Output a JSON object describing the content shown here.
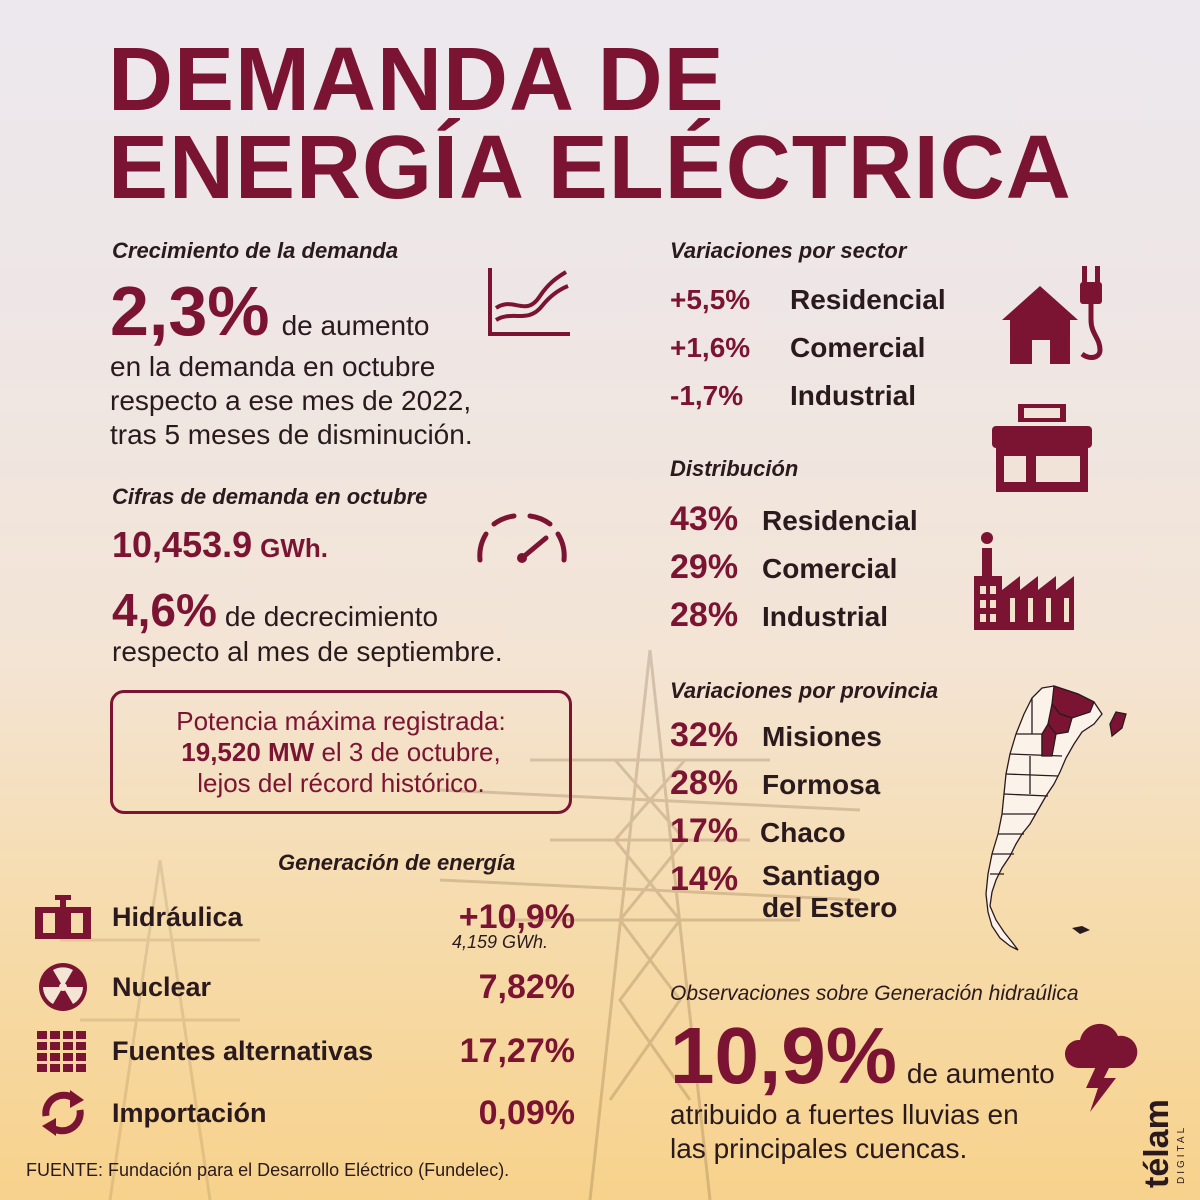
{
  "title": {
    "line1": "DEMANDA DE",
    "line2": "ENERGÍA ELÉCTRICA"
  },
  "growth": {
    "label": "Crecimiento de la demanda",
    "pct": "2,3%",
    "text_inline": "de aumento",
    "text_lines": [
      "en la demanda en octubre",
      "respecto a ese mes de 2022,",
      "tras 5 meses de disminución."
    ]
  },
  "figures": {
    "label": "Cifras de demanda en octubre",
    "value": "10,453.9",
    "unit": "GWh.",
    "decrease_pct": "4,6%",
    "decrease_inline": "de decrecimiento",
    "decrease_line2": "respecto al mes de septiembre."
  },
  "peak": {
    "line1": "Potencia máxima registrada:",
    "line2_bold": "19,520 MW",
    "line2_rest": " el 3 de octubre,",
    "line3": "lejos del récord histórico."
  },
  "generation": {
    "label": "Generación de energía",
    "items": [
      {
        "label": "Hidráulica",
        "value": "+10,9%",
        "sub": "4,159 GWh.",
        "icon": "dam-icon"
      },
      {
        "label": "Nuclear",
        "value": "7,82%",
        "icon": "radiation-icon"
      },
      {
        "label": "Fuentes alternativas",
        "value": "17,27%",
        "icon": "solar-panel-icon"
      },
      {
        "label": "Importación",
        "value": "0,09%",
        "icon": "recycle-arrows-icon"
      }
    ]
  },
  "sector": {
    "label": "Variaciones por sector",
    "items": [
      {
        "pct": "+5,5%",
        "label": "Residencial"
      },
      {
        "pct": "+1,6%",
        "label": "Comercial"
      },
      {
        "pct": "-1,7%",
        "label": "Industrial"
      }
    ]
  },
  "distribution": {
    "label": "Distribución",
    "items": [
      {
        "pct": "43%",
        "label": "Residencial"
      },
      {
        "pct": "29%",
        "label": "Comercial"
      },
      {
        "pct": "28%",
        "label": "Industrial"
      }
    ]
  },
  "province": {
    "label": "Variaciones por provincia",
    "items": [
      {
        "pct": "32%",
        "label": "Misiones"
      },
      {
        "pct": "28%",
        "label": "Formosa"
      },
      {
        "pct": "17%",
        "label": "Chaco"
      },
      {
        "pct": "14%",
        "label": "Santiago",
        "label2": "del Estero"
      }
    ]
  },
  "hydro_obs": {
    "label": "Observaciones sobre Generación hidraúlica",
    "pct": "10,9%",
    "inline": "de aumento",
    "line2": "atribuido a fuertes lluvias en",
    "line3": "las principales cuencas."
  },
  "footer": "FUENTE: Fundación para el Desarrollo Eléctrico (Fundelec).",
  "logo": {
    "name": "télam",
    "sub": "DIGITAL"
  },
  "colors": {
    "accent": "#7b1433",
    "text": "#2a1a1e"
  }
}
